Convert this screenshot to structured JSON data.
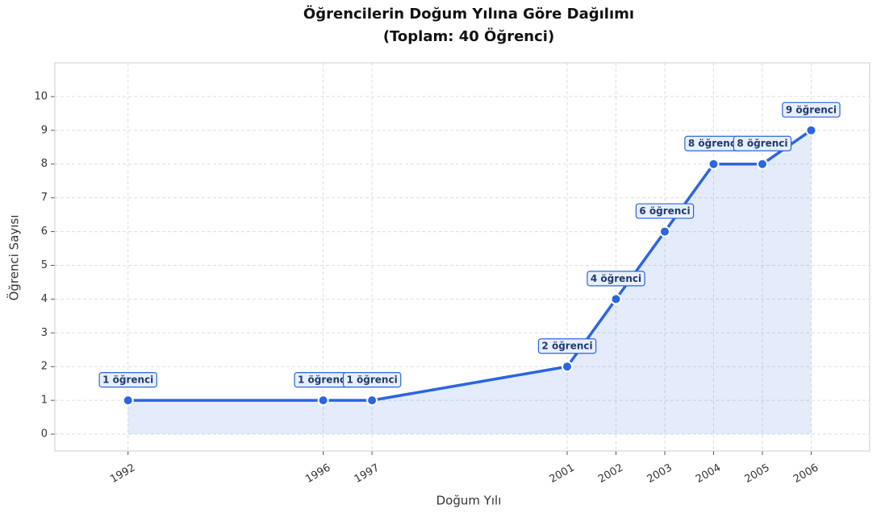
{
  "chart_data": {
    "type": "line",
    "title": [
      "Öğrencilerin Doğum Yılına Göre Dağılımı",
      "(Toplam: 40 Öğrenci)"
    ],
    "xlabel": "Doğum Yılı",
    "ylabel": "Öğrenci Sayısı",
    "x": [
      1992,
      1996,
      1997,
      2001,
      2002,
      2003,
      2004,
      2005,
      2006
    ],
    "series": [
      {
        "name": "Öğrenci Sayısı",
        "color": "#2b65e0",
        "values": [
          1,
          1,
          1,
          2,
          4,
          6,
          8,
          8,
          9
        ],
        "value_labels": [
          "1 öğrenci",
          "1 öğrenci",
          "1 öğrenci",
          "2 öğrenci",
          "4 öğrenci",
          "6 öğrenci",
          "8 öğrenci",
          "8 öğrenci",
          "9 öğrenci"
        ]
      }
    ],
    "xlim": [
      1990.5,
      2007.2
    ],
    "ylim": [
      -0.5,
      11
    ],
    "xticks": [
      1992,
      1996,
      1997,
      2001,
      2002,
      2003,
      2004,
      2005,
      2006
    ],
    "yticks": [
      0,
      1,
      2,
      3,
      4,
      5,
      6,
      7,
      8,
      9,
      10
    ],
    "grid": true,
    "fill": true
  }
}
